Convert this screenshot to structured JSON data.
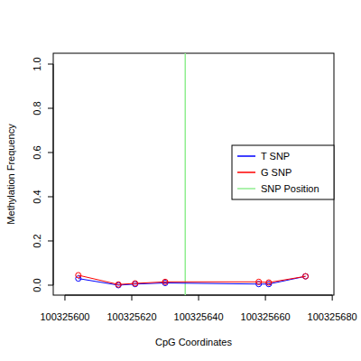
{
  "chart_data": {
    "type": "line",
    "x_label": "CpG Coordinates",
    "y_label": "Methylation Frequency",
    "x": [
      100325604,
      100325616,
      100325621,
      100325630,
      100325658,
      100325661,
      100325672
    ],
    "series": [
      {
        "name": "T SNP",
        "color": "#0000ff",
        "marker": "circle",
        "line_style": "solid",
        "values": [
          0.03,
          0.0,
          0.005,
          0.01,
          0.005,
          0.005,
          0.04
        ]
      },
      {
        "name": "G SNP",
        "color": "#ff0000",
        "marker": "circle",
        "line_style": "solid",
        "values": [
          0.045,
          0.003,
          0.008,
          0.015,
          0.015,
          0.012,
          0.04
        ]
      }
    ],
    "vlines": [
      {
        "name": "SNP Position",
        "color": "#90ee90",
        "x": 100325636
      }
    ],
    "xlim": [
      100325596.5,
      100325680.5
    ],
    "ylim": [
      -0.045,
      1.049
    ],
    "xticks": [
      100325600,
      100325620,
      100325640,
      100325660,
      100325680
    ],
    "yticks": [
      {
        "value": 0,
        "label": "0.0"
      },
      {
        "value": 0.2,
        "label": "0.2"
      },
      {
        "value": 0.4,
        "label": "0.4"
      },
      {
        "value": 0.6,
        "label": "0.6"
      },
      {
        "value": 0.8,
        "label": "0.8"
      },
      {
        "value": 1,
        "label": "1.0"
      }
    ],
    "legend": "right",
    "grid": false
  }
}
